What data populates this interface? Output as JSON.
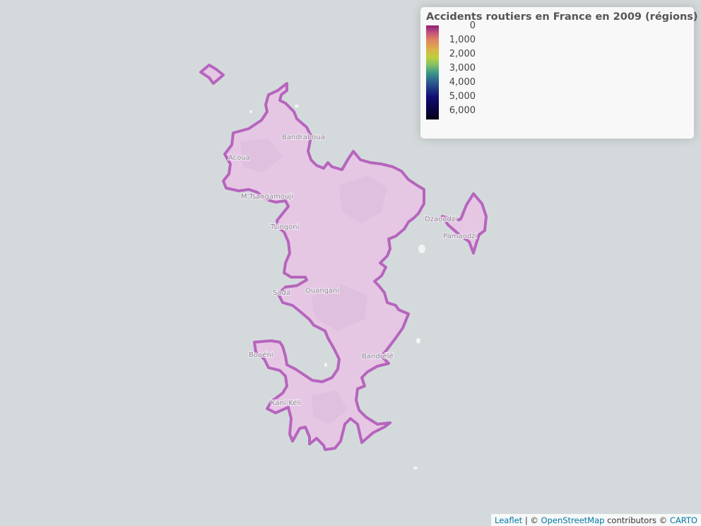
{
  "legend": {
    "title": "Accidents routiers en France en 2009 (régions)",
    "labels": [
      "0",
      "1,000",
      "2,000",
      "3,000",
      "4,000",
      "5,000",
      "6,000"
    ],
    "palette": [
      "#8f1e7c",
      "#e0875f",
      "#bfcf3d",
      "#3f9a86",
      "#233e86",
      "#0a0650",
      "#050214"
    ]
  },
  "map": {
    "region_fill": "#e6c6e4",
    "region_stroke": "#b665bd",
    "water": "#d4dadc",
    "places": [
      "Bandraboua",
      "Acoua",
      "M'Tsangamouji",
      "Tsingoni",
      "Dzaoudzi",
      "Pamandzi",
      "Sada",
      "Ouangani",
      "Bouéni",
      "Bandrélé",
      "Kani-Kéli"
    ]
  },
  "attribution": {
    "leaflet": "Leaflet",
    "separator": "| ©",
    "osm": "OpenStreetMap",
    "contributors": "contributors ©",
    "carto": "CARTO"
  }
}
